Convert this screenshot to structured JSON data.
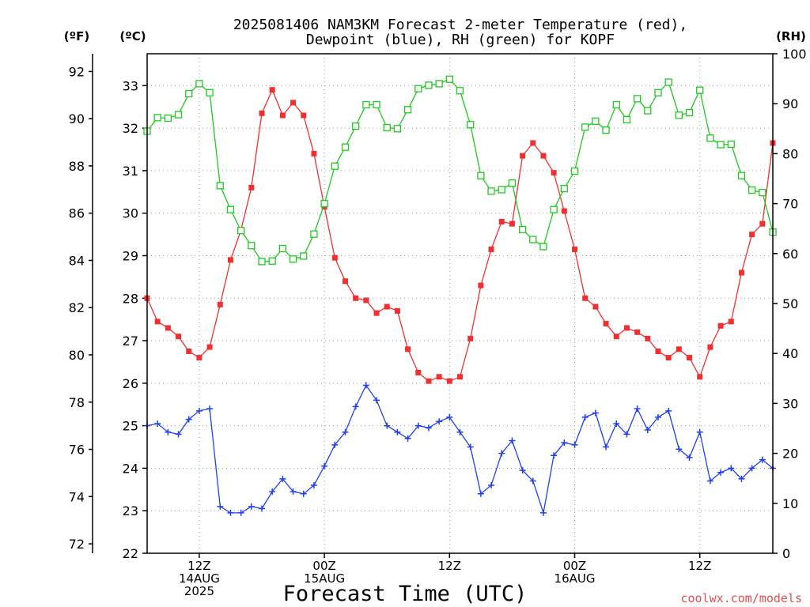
{
  "chart_data": {
    "type": "line",
    "title": [
      "2025081406 NAM3KM Forecast 2-meter Temperature (red),",
      "Dewpoint (blue), RH (green) for KOPF"
    ],
    "xlabel": "Forecast Time (UTC)",
    "credit": "coolwx.com/models",
    "y_axes": {
      "fahrenheit": {
        "label": "(ºF)",
        "ticks": [
          "72",
          "74",
          "76",
          "78",
          "80",
          "82",
          "84",
          "86",
          "88",
          "90",
          "92"
        ]
      },
      "celsius": {
        "label": "(ºC)",
        "ticks": [
          "22",
          "23",
          "24",
          "25",
          "26",
          "27",
          "28",
          "29",
          "30",
          "31",
          "32",
          "33"
        ],
        "range": [
          22,
          33.75
        ]
      },
      "rh": {
        "label": "(RH)",
        "ticks": [
          "0",
          "10",
          "20",
          "30",
          "40",
          "50",
          "60",
          "70",
          "80",
          "90",
          "100"
        ],
        "range": [
          0,
          100
        ]
      }
    },
    "x_range_hours": [
      7,
      67
    ],
    "x_ticks": [
      {
        "hour": 12,
        "lines": [
          "12Z",
          "14AUG",
          "2025"
        ]
      },
      {
        "hour": 24,
        "lines": [
          "00Z",
          "15AUG"
        ]
      },
      {
        "hour": 36,
        "lines": [
          "12Z"
        ]
      },
      {
        "hour": 48,
        "lines": [
          "00Z",
          "16AUG"
        ]
      },
      {
        "hour": 60,
        "lines": [
          "12Z"
        ]
      }
    ],
    "grid": true,
    "series": [
      {
        "name": "Temperature",
        "color": "#f03030",
        "marker": "filled-square",
        "axis": "celsius",
        "values": [
          28.0,
          27.45,
          27.3,
          27.1,
          26.75,
          26.6,
          26.85,
          27.85,
          28.9,
          29.6,
          30.6,
          32.35,
          32.9,
          32.3,
          32.6,
          32.3,
          31.4,
          30.15,
          28.95,
          28.4,
          28.0,
          27.95,
          27.65,
          27.8,
          27.7,
          26.8,
          26.25,
          26.05,
          26.15,
          26.05,
          26.15,
          27.05,
          28.3,
          29.15,
          29.8,
          29.75,
          31.35,
          31.65,
          31.35,
          30.95,
          30.05,
          29.15,
          28.0,
          27.8,
          27.4,
          27.1,
          27.3,
          27.2,
          27.05,
          26.75,
          26.6,
          26.8,
          26.6,
          26.15,
          26.85,
          27.35,
          27.45,
          28.6,
          29.5,
          29.75,
          31.65
        ]
      },
      {
        "name": "Dewpoint",
        "color": "#2040f0",
        "marker": "plus",
        "axis": "celsius",
        "values": [
          25.0,
          25.05,
          24.85,
          24.8,
          25.15,
          25.35,
          25.4,
          23.1,
          22.95,
          22.95,
          23.1,
          23.05,
          23.45,
          23.75,
          23.45,
          23.4,
          23.6,
          24.05,
          24.55,
          24.85,
          25.45,
          25.95,
          25.6,
          25.0,
          24.85,
          24.7,
          25.0,
          24.95,
          25.1,
          25.2,
          24.85,
          24.5,
          23.4,
          23.6,
          24.35,
          24.65,
          23.95,
          23.7,
          22.95,
          24.3,
          24.6,
          24.55,
          25.2,
          25.3,
          24.5,
          25.05,
          24.8,
          25.4,
          24.9,
          25.2,
          25.35,
          24.45,
          24.25,
          24.85,
          23.7,
          23.9,
          24.0,
          23.75,
          24.0,
          24.2,
          24.0
        ]
      },
      {
        "name": "RH",
        "color": "#20c820",
        "marker": "open-square",
        "axis": "rh",
        "values": [
          84.5,
          87.2,
          87.1,
          87.8,
          92.0,
          94.0,
          92.2,
          73.6,
          68.8,
          64.6,
          61.6,
          58.4,
          58.5,
          61.0,
          58.9,
          59.5,
          63.9,
          70.0,
          77.5,
          81.3,
          85.5,
          89.8,
          89.8,
          85.2,
          85.0,
          88.8,
          93.0,
          93.7,
          94.0,
          94.9,
          92.6,
          85.8,
          75.6,
          72.5,
          72.8,
          74.1,
          64.8,
          62.8,
          61.4,
          68.8,
          73.0,
          76.5,
          85.3,
          86.5,
          84.7,
          89.8,
          86.8,
          91.0,
          88.6,
          92.2,
          94.3,
          87.7,
          88.2,
          92.7,
          83.1,
          81.8,
          81.9,
          75.6,
          72.7,
          72.2,
          64.3
        ]
      }
    ]
  }
}
